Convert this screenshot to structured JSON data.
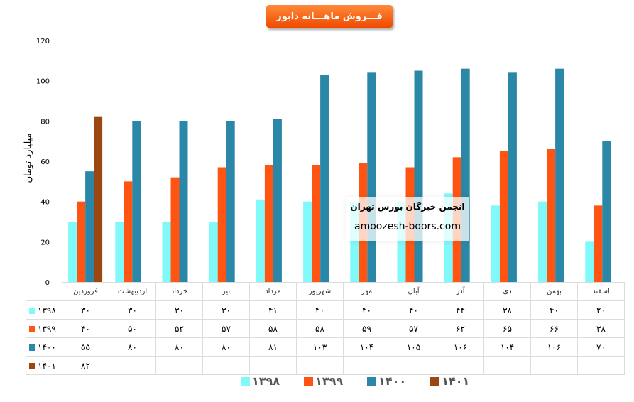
{
  "chart_data": {
    "type": "bar",
    "title": "فـــروش ماهـــانه دابور",
    "ylabel": "میلیارد تومان",
    "ylim": [
      0,
      120
    ],
    "yticks": [
      0,
      20,
      40,
      60,
      80,
      100,
      120
    ],
    "categories": [
      "فروردین",
      "اردیبهشت",
      "خرداد",
      "تیر",
      "مرداد",
      "شهریور",
      "مهر",
      "آبان",
      "آذر",
      "دی",
      "بهمن",
      "اسفند"
    ],
    "series": [
      {
        "name": "۱۳۹۸",
        "color": "#7ff9fa",
        "values": [
          30,
          30,
          30,
          30,
          41,
          40,
          40,
          40,
          44,
          38,
          40,
          20
        ],
        "labels": [
          "۳۰",
          "۳۰",
          "۳۰",
          "۳۰",
          "۴۱",
          "۴۰",
          "۴۰",
          "۴۰",
          "۴۴",
          "۳۸",
          "۴۰",
          "۲۰"
        ]
      },
      {
        "name": "۱۳۹۹",
        "color": "#ff5412",
        "values": [
          40,
          50,
          52,
          57,
          58,
          58,
          59,
          57,
          62,
          65,
          66,
          38
        ],
        "labels": [
          "۴۰",
          "۵۰",
          "۵۲",
          "۵۷",
          "۵۸",
          "۵۸",
          "۵۹",
          "۵۷",
          "۶۲",
          "۶۵",
          "۶۶",
          "۳۸"
        ]
      },
      {
        "name": "۱۴۰۰",
        "color": "#2a87a8",
        "values": [
          55,
          80,
          80,
          80,
          81,
          103,
          104,
          105,
          106,
          104,
          106,
          70
        ],
        "labels": [
          "۵۵",
          "۸۰",
          "۸۰",
          "۸۰",
          "۸۱",
          "۱۰۳",
          "۱۰۴",
          "۱۰۵",
          "۱۰۶",
          "۱۰۴",
          "۱۰۶",
          "۷۰"
        ]
      },
      {
        "name": "۱۴۰۱",
        "color": "#9c4612",
        "values": [
          82,
          null,
          null,
          null,
          null,
          null,
          null,
          null,
          null,
          null,
          null,
          null
        ],
        "labels": [
          "۸۲",
          "",
          "",
          "",
          "",
          "",
          "",
          "",
          "",
          "",
          "",
          ""
        ]
      }
    ],
    "legend": "bottom",
    "grid": false
  },
  "watermark": {
    "line1": "انجمن خبرگان بورس تهران",
    "line2": "amoozesh-boors.com"
  }
}
